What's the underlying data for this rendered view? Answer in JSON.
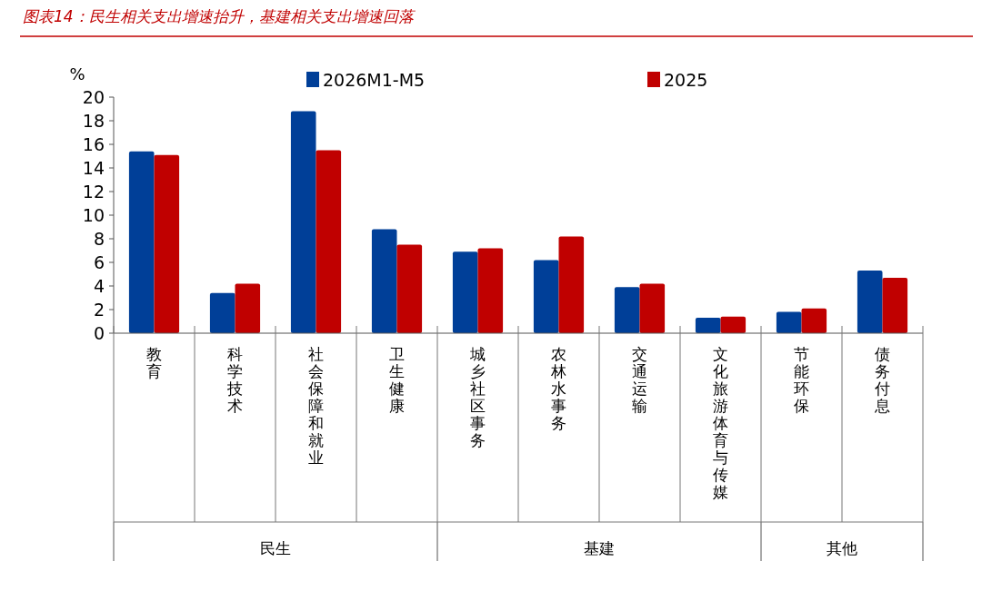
{
  "chart_data": {
    "type": "bar",
    "title": "图表14：民生相关支出增速抬升，基建相关支出增速回落",
    "ylabel": "%",
    "categories": [
      "教育",
      "科学技术",
      "社会保障和就业",
      "卫生健康",
      "城乡社区事务",
      "农林水事务",
      "交通运输",
      "文化旅游体育与传媒",
      "节能环保",
      "债务付息"
    ],
    "series": [
      {
        "name": "2026M1-M5",
        "color": "#003f98",
        "values": [
          15.4,
          3.4,
          18.8,
          8.8,
          6.9,
          6.2,
          3.9,
          1.3,
          1.8,
          5.3
        ]
      },
      {
        "name": "2025",
        "color": "#c00000",
        "values": [
          15.1,
          4.2,
          15.5,
          7.5,
          7.2,
          8.2,
          4.2,
          1.4,
          2.1,
          4.7
        ]
      }
    ],
    "annotations": [
      "民生",
      "基建",
      "其他"
    ],
    "ylim": [
      0,
      20
    ],
    "yticks": [
      0,
      2,
      4,
      6,
      8,
      10,
      12,
      14,
      16,
      18,
      20
    ],
    "grid": false,
    "legend": "top"
  }
}
